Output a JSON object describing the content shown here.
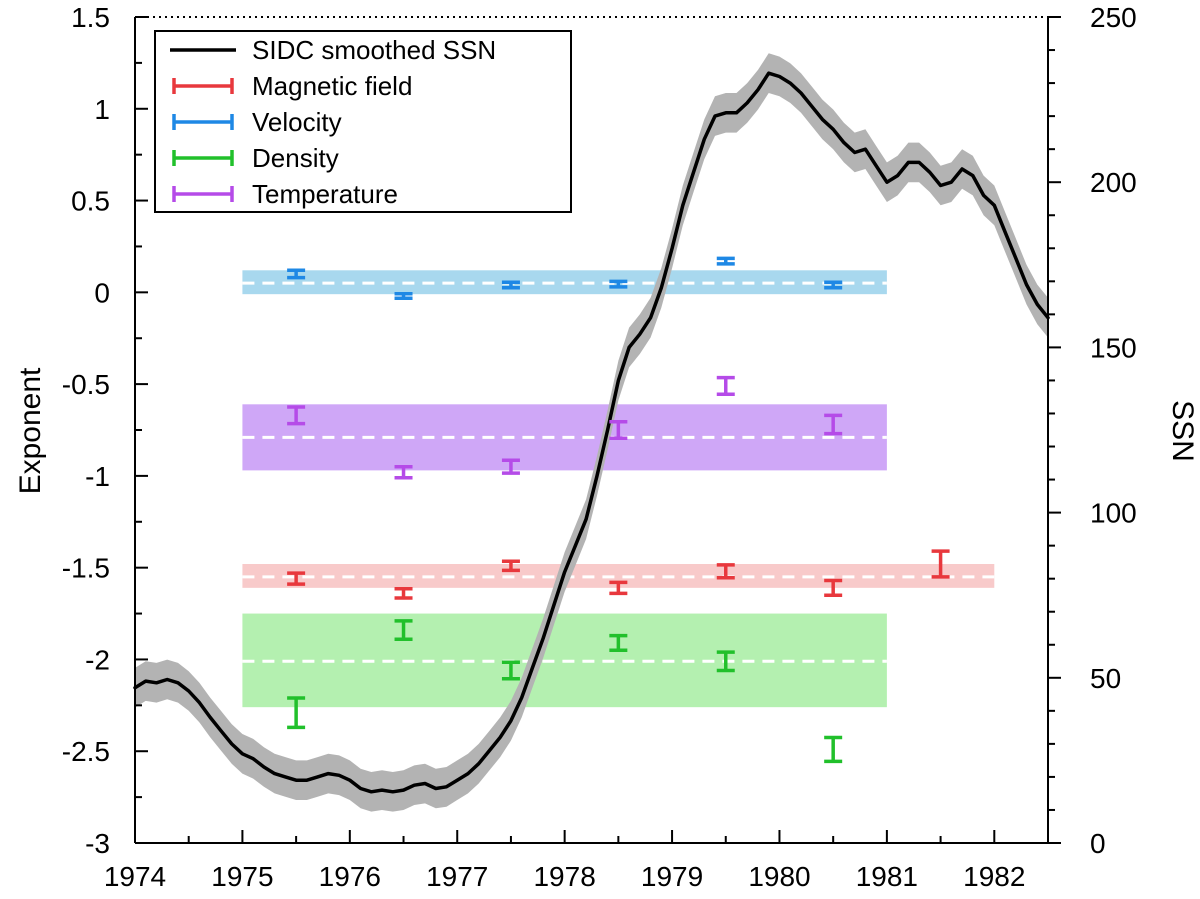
{
  "chart_data": {
    "type": "line",
    "title": "",
    "xlabel": "",
    "ylabel_left": "Exponent",
    "ylabel_right": "SSN",
    "xlim": [
      1974,
      1982.5
    ],
    "ylim_left": [
      -3,
      1.5
    ],
    "ylim_right": [
      0,
      250
    ],
    "x_ticks": [
      1974,
      1975,
      1976,
      1977,
      1978,
      1979,
      1980,
      1981,
      1982
    ],
    "x_tick_labels": [
      "1974",
      "1975",
      "1976",
      "1977",
      "1978",
      "1979",
      "1980",
      "1981",
      "1982"
    ],
    "y_left_ticks": [
      -3,
      -2.5,
      -2,
      -1.5,
      -1,
      -0.5,
      0,
      0.5,
      1,
      1.5
    ],
    "y_left_tick_labels": [
      "-3",
      "-2.5",
      "-2",
      "-1.5",
      "-1",
      "-0.5",
      "0",
      "0.5",
      "1",
      "1.5"
    ],
    "y_right_ticks": [
      0,
      50,
      100,
      150,
      200,
      250
    ],
    "y_right_tick_labels": [
      "0",
      "50",
      "100",
      "150",
      "200",
      "250"
    ],
    "legend": {
      "position": "top-left",
      "entries": [
        {
          "label": "SIDC smoothed SSN",
          "color": "#000000",
          "style": "line"
        },
        {
          "label": "Magnetic field",
          "color": "#e8383d",
          "style": "errorbar"
        },
        {
          "label": "Velocity",
          "color": "#1e88e5",
          "style": "errorbar"
        },
        {
          "label": "Density",
          "color": "#21c02b",
          "style": "errorbar"
        },
        {
          "label": "Temperature",
          "color": "#b54be8",
          "style": "errorbar"
        }
      ]
    },
    "ssn_series": {
      "name": "SIDC smoothed SSN",
      "color": "#000000",
      "band_color": "#b3b3b3",
      "x": [
        1974.0,
        1974.1,
        1974.2,
        1974.3,
        1974.4,
        1974.5,
        1974.6,
        1974.7,
        1974.8,
        1974.9,
        1975.0,
        1975.1,
        1975.2,
        1975.3,
        1975.4,
        1975.5,
        1975.6,
        1975.7,
        1975.8,
        1975.9,
        1976.0,
        1976.1,
        1976.2,
        1976.3,
        1976.4,
        1976.5,
        1976.6,
        1976.7,
        1976.8,
        1976.9,
        1977.0,
        1977.1,
        1977.2,
        1977.3,
        1977.4,
        1977.5,
        1977.6,
        1977.7,
        1977.8,
        1977.9,
        1978.0,
        1978.1,
        1978.2,
        1978.3,
        1978.4,
        1978.5,
        1978.6,
        1978.7,
        1978.8,
        1978.9,
        1979.0,
        1979.1,
        1979.2,
        1979.3,
        1979.4,
        1979.5,
        1979.6,
        1979.7,
        1979.8,
        1979.9,
        1980.0,
        1980.1,
        1980.2,
        1980.3,
        1980.4,
        1980.5,
        1980.6,
        1980.7,
        1980.8,
        1980.9,
        1981.0,
        1981.1,
        1981.2,
        1981.3,
        1981.4,
        1981.5,
        1981.6,
        1981.7,
        1981.8,
        1981.9,
        1982.0,
        1982.1,
        1982.2,
        1982.3,
        1982.4,
        1982.5
      ],
      "values": [
        47,
        49,
        48.5,
        49.5,
        48.5,
        46,
        42.5,
        38,
        34,
        30,
        27,
        25.5,
        23,
        21,
        20,
        19,
        19,
        20,
        21,
        20.5,
        19,
        16.5,
        15.5,
        16,
        15.5,
        16,
        17.5,
        18,
        16.5,
        17,
        19,
        21,
        24,
        28,
        32,
        37,
        44,
        53,
        62,
        72,
        82,
        90,
        98,
        111,
        125,
        140,
        150,
        154,
        159,
        168,
        180,
        193,
        203,
        213,
        220,
        221,
        221,
        224,
        228,
        233,
        232,
        230,
        227,
        223,
        219,
        216,
        212,
        209,
        210,
        205,
        200,
        202,
        206,
        206,
        203,
        199,
        200,
        204,
        202,
        196,
        193,
        185,
        177,
        169,
        163,
        159
      ],
      "band_half_width": 6
    },
    "mean_bands": [
      {
        "name": "Velocity mean",
        "color": "#a8d8ee",
        "x_range": [
          1975,
          1981
        ],
        "mean": 0.05,
        "low": -0.01,
        "high": 0.12
      },
      {
        "name": "Temperature mean",
        "color": "#cfa7f7",
        "x_range": [
          1975,
          1981
        ],
        "mean": -0.79,
        "low": -0.97,
        "high": -0.61
      },
      {
        "name": "Magnetic field mean",
        "color": "#f8caca",
        "x_range": [
          1975,
          1982
        ],
        "mean": -1.55,
        "low": -1.61,
        "high": -1.48
      },
      {
        "name": "Density mean",
        "color": "#b4f0b0",
        "x_range": [
          1975,
          1981
        ],
        "mean": -2.01,
        "low": -2.26,
        "high": -1.75
      }
    ],
    "series": [
      {
        "name": "Magnetic field",
        "color": "#e8383d",
        "x": [
          1975.5,
          1976.5,
          1977.5,
          1978.5,
          1979.5,
          1980.5,
          1981.5
        ],
        "values": [
          -1.56,
          -1.64,
          -1.49,
          -1.61,
          -1.52,
          -1.61,
          -1.48
        ],
        "errors": [
          0.03,
          0.025,
          0.025,
          0.03,
          0.035,
          0.04,
          0.07
        ]
      },
      {
        "name": "Velocity",
        "color": "#1e88e5",
        "x": [
          1975.5,
          1976.5,
          1977.5,
          1978.5,
          1979.5,
          1980.5
        ],
        "values": [
          0.1,
          -0.02,
          0.04,
          0.045,
          0.17,
          0.04
        ],
        "errors": [
          0.02,
          0.012,
          0.015,
          0.015,
          0.015,
          0.015
        ]
      },
      {
        "name": "Density",
        "color": "#21c02b",
        "x": [
          1975.5,
          1976.5,
          1977.5,
          1978.5,
          1979.5,
          1980.5
        ],
        "values": [
          -2.29,
          -1.84,
          -2.06,
          -1.91,
          -2.01,
          -2.49
        ],
        "errors": [
          0.08,
          0.05,
          0.045,
          0.04,
          0.05,
          0.065
        ]
      },
      {
        "name": "Temperature",
        "color": "#b54be8",
        "x": [
          1975.5,
          1976.5,
          1977.5,
          1978.5,
          1979.5,
          1980.5
        ],
        "values": [
          -0.67,
          -0.98,
          -0.95,
          -0.75,
          -0.51,
          -0.72
        ],
        "errors": [
          0.045,
          0.03,
          0.035,
          0.045,
          0.045,
          0.05
        ]
      }
    ]
  }
}
